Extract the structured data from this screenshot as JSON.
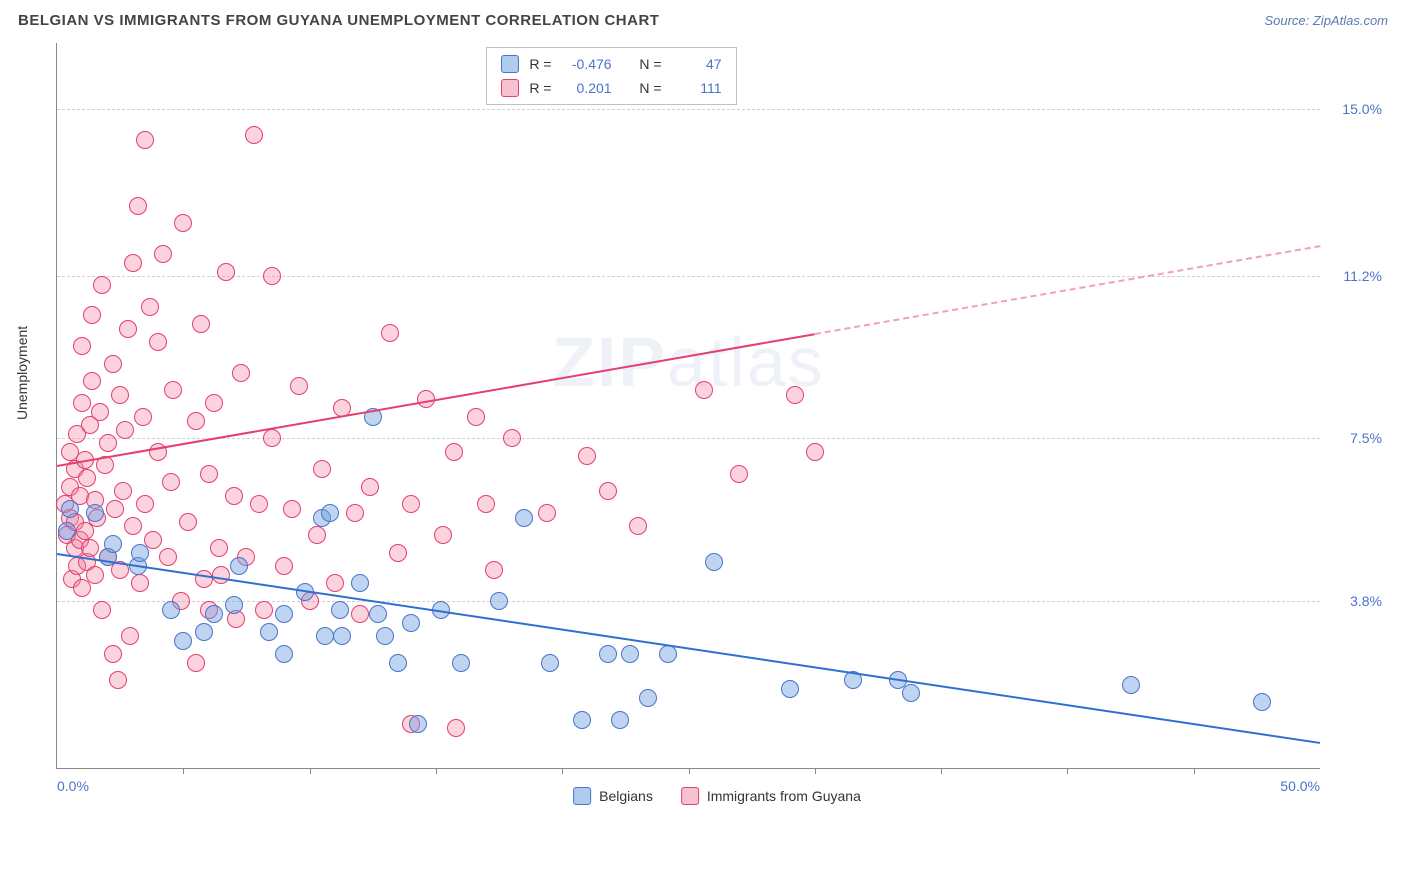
{
  "header": {
    "title": "BELGIAN VS IMMIGRANTS FROM GUYANA UNEMPLOYMENT CORRELATION CHART",
    "source_label": "Source: ZipAtlas.com"
  },
  "ylabel": "Unemployment",
  "watermark_a": "ZIP",
  "watermark_b": "atlas",
  "stats": {
    "r_label": "R =",
    "n_label": "N =",
    "series": [
      {
        "color": "blue",
        "r": "-0.476",
        "n": "47"
      },
      {
        "color": "pink",
        "r": "0.201",
        "n": "111"
      }
    ]
  },
  "legend": [
    {
      "color": "blue",
      "label": "Belgians"
    },
    {
      "color": "pink",
      "label": "Immigrants from Guyana"
    }
  ],
  "chart": {
    "type": "scatter",
    "xlim": [
      0,
      50
    ],
    "ylim": [
      0,
      16.5
    ],
    "x_ticks": [
      {
        "v": 0,
        "label": "0.0%",
        "align": "left"
      },
      {
        "v": 50,
        "label": "50.0%",
        "align": "right"
      }
    ],
    "x_minor_ticks": [
      5,
      10,
      15,
      20,
      25,
      30,
      35,
      40,
      45
    ],
    "y_ticks": [
      {
        "v": 3.8,
        "label": "3.8%"
      },
      {
        "v": 7.5,
        "label": "7.5%"
      },
      {
        "v": 11.2,
        "label": "11.2%"
      },
      {
        "v": 15.0,
        "label": "15.0%"
      }
    ],
    "colors": {
      "blue_fill": "rgba(110,160,225,0.45)",
      "blue_stroke": "#4a74c9",
      "pink_fill": "rgba(240,130,160,0.35)",
      "pink_stroke": "#e43f6f",
      "grid": "#d0d0d0",
      "axis": "#888",
      "tick_text": "#4a74c9"
    },
    "trend_lines": {
      "blue": {
        "x1": 0,
        "y1": 4.9,
        "x2": 50,
        "y2": 0.6
      },
      "pink_solid": {
        "x1": 0,
        "y1": 6.9,
        "x2": 30,
        "y2": 9.9
      },
      "pink_dash": {
        "x1": 30,
        "y1": 9.9,
        "x2": 50,
        "y2": 11.9
      }
    },
    "series_blue": [
      [
        0.4,
        5.4
      ],
      [
        0.5,
        5.9
      ],
      [
        1.5,
        5.8
      ],
      [
        2.0,
        4.8
      ],
      [
        2.2,
        5.1
      ],
      [
        3.2,
        4.6
      ],
      [
        3.3,
        4.9
      ],
      [
        5.0,
        2.9
      ],
      [
        5.8,
        3.1
      ],
      [
        4.5,
        3.6
      ],
      [
        6.2,
        3.5
      ],
      [
        7.0,
        3.7
      ],
      [
        7.2,
        4.6
      ],
      [
        8.4,
        3.1
      ],
      [
        9.0,
        3.5
      ],
      [
        9.0,
        2.6
      ],
      [
        9.8,
        4.0
      ],
      [
        10.5,
        5.7
      ],
      [
        10.8,
        5.8
      ],
      [
        10.6,
        3.0
      ],
      [
        11.2,
        3.6
      ],
      [
        11.3,
        3.0
      ],
      [
        12.0,
        4.2
      ],
      [
        12.5,
        8.0
      ],
      [
        12.7,
        3.5
      ],
      [
        13.0,
        3.0
      ],
      [
        13.5,
        2.4
      ],
      [
        14.0,
        3.3
      ],
      [
        14.3,
        1.0
      ],
      [
        15.2,
        3.6
      ],
      [
        16.0,
        2.4
      ],
      [
        17.5,
        3.8
      ],
      [
        18.5,
        5.7
      ],
      [
        19.5,
        2.4
      ],
      [
        20.8,
        1.1
      ],
      [
        21.8,
        2.6
      ],
      [
        22.3,
        1.1
      ],
      [
        22.7,
        2.6
      ],
      [
        23.4,
        1.6
      ],
      [
        24.2,
        2.6
      ],
      [
        26.0,
        4.7
      ],
      [
        29.0,
        1.8
      ],
      [
        31.5,
        2.0
      ],
      [
        33.3,
        2.0
      ],
      [
        33.8,
        1.7
      ],
      [
        42.5,
        1.9
      ],
      [
        47.7,
        1.5
      ]
    ],
    "series_pink": [
      [
        0.3,
        6.0
      ],
      [
        0.4,
        5.3
      ],
      [
        0.5,
        5.7
      ],
      [
        0.5,
        6.4
      ],
      [
        0.5,
        7.2
      ],
      [
        0.6,
        4.3
      ],
      [
        0.7,
        5.0
      ],
      [
        0.7,
        5.6
      ],
      [
        0.7,
        6.8
      ],
      [
        0.8,
        4.6
      ],
      [
        0.8,
        7.6
      ],
      [
        0.9,
        5.2
      ],
      [
        0.9,
        6.2
      ],
      [
        1.0,
        4.1
      ],
      [
        1.0,
        8.3
      ],
      [
        1.0,
        9.6
      ],
      [
        1.1,
        5.4
      ],
      [
        1.1,
        7.0
      ],
      [
        1.2,
        4.7
      ],
      [
        1.2,
        6.6
      ],
      [
        1.3,
        5.0
      ],
      [
        1.3,
        7.8
      ],
      [
        1.4,
        8.8
      ],
      [
        1.4,
        10.3
      ],
      [
        1.5,
        4.4
      ],
      [
        1.5,
        6.1
      ],
      [
        1.6,
        5.7
      ],
      [
        1.7,
        8.1
      ],
      [
        1.8,
        3.6
      ],
      [
        1.8,
        11.0
      ],
      [
        1.9,
        6.9
      ],
      [
        2.0,
        4.8
      ],
      [
        2.0,
        7.4
      ],
      [
        2.2,
        2.6
      ],
      [
        2.2,
        9.2
      ],
      [
        2.3,
        5.9
      ],
      [
        2.4,
        2.0
      ],
      [
        2.5,
        4.5
      ],
      [
        2.5,
        8.5
      ],
      [
        2.6,
        6.3
      ],
      [
        2.7,
        7.7
      ],
      [
        2.8,
        10.0
      ],
      [
        2.9,
        3.0
      ],
      [
        3.0,
        5.5
      ],
      [
        3.0,
        11.5
      ],
      [
        3.2,
        12.8
      ],
      [
        3.3,
        4.2
      ],
      [
        3.4,
        8.0
      ],
      [
        3.5,
        6.0
      ],
      [
        3.5,
        14.3
      ],
      [
        3.7,
        10.5
      ],
      [
        3.8,
        5.2
      ],
      [
        4.0,
        7.2
      ],
      [
        4.0,
        9.7
      ],
      [
        4.2,
        11.7
      ],
      [
        4.4,
        4.8
      ],
      [
        4.5,
        6.5
      ],
      [
        4.6,
        8.6
      ],
      [
        4.9,
        3.8
      ],
      [
        5.0,
        12.4
      ],
      [
        5.2,
        5.6
      ],
      [
        5.5,
        2.4
      ],
      [
        5.5,
        7.9
      ],
      [
        5.7,
        10.1
      ],
      [
        5.8,
        4.3
      ],
      [
        6.0,
        3.6
      ],
      [
        6.0,
        6.7
      ],
      [
        6.2,
        8.3
      ],
      [
        6.4,
        5.0
      ],
      [
        6.5,
        4.4
      ],
      [
        6.7,
        11.3
      ],
      [
        7.0,
        6.2
      ],
      [
        7.1,
        3.4
      ],
      [
        7.3,
        9.0
      ],
      [
        7.5,
        4.8
      ],
      [
        7.8,
        14.4
      ],
      [
        8.0,
        6.0
      ],
      [
        8.2,
        3.6
      ],
      [
        8.5,
        7.5
      ],
      [
        8.5,
        11.2
      ],
      [
        9.0,
        4.6
      ],
      [
        9.3,
        5.9
      ],
      [
        9.6,
        8.7
      ],
      [
        10.0,
        3.8
      ],
      [
        10.3,
        5.3
      ],
      [
        10.5,
        6.8
      ],
      [
        11.0,
        4.2
      ],
      [
        11.3,
        8.2
      ],
      [
        11.8,
        5.8
      ],
      [
        12.0,
        3.5
      ],
      [
        12.4,
        6.4
      ],
      [
        13.2,
        9.9
      ],
      [
        13.5,
        4.9
      ],
      [
        14.0,
        1.0
      ],
      [
        14.0,
        6.0
      ],
      [
        14.6,
        8.4
      ],
      [
        15.3,
        5.3
      ],
      [
        15.7,
        7.2
      ],
      [
        15.8,
        0.9
      ],
      [
        16.6,
        8.0
      ],
      [
        17.0,
        6.0
      ],
      [
        17.3,
        4.5
      ],
      [
        18.0,
        7.5
      ],
      [
        19.4,
        5.8
      ],
      [
        21.0,
        7.1
      ],
      [
        21.8,
        6.3
      ],
      [
        23.0,
        5.5
      ],
      [
        25.6,
        8.6
      ],
      [
        27.0,
        6.7
      ],
      [
        29.2,
        8.5
      ],
      [
        30.0,
        7.2
      ]
    ]
  }
}
